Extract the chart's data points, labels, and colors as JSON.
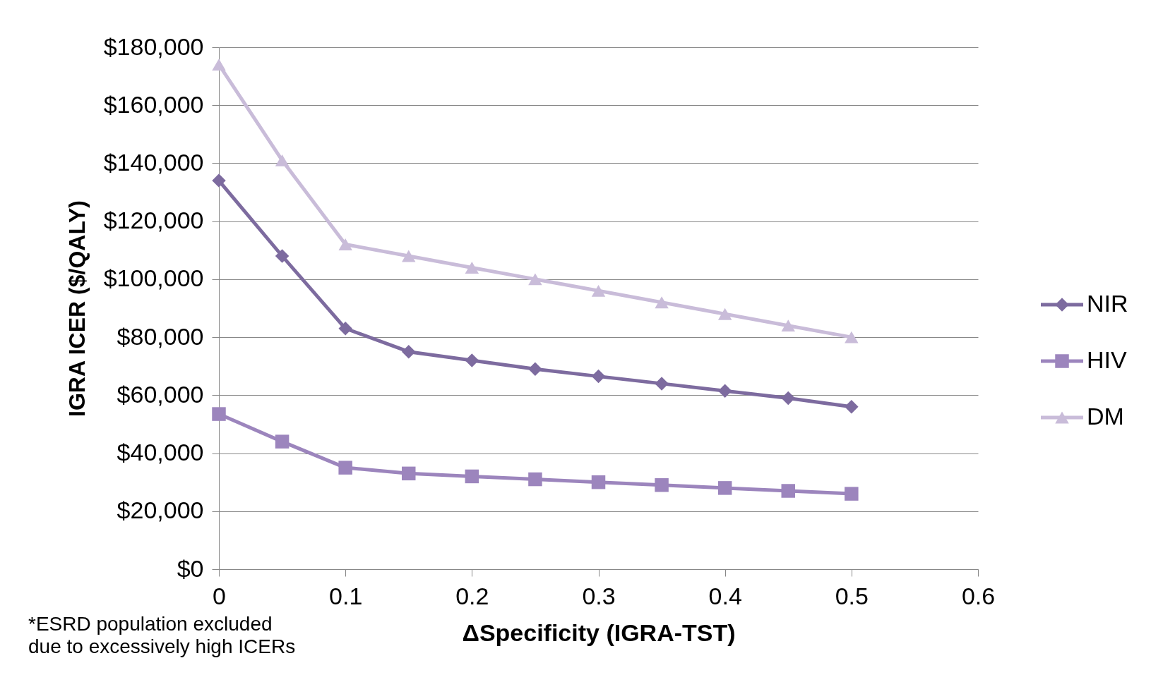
{
  "chart_data": {
    "type": "line",
    "xlabel": "ΔSpecificity (IGRA-TST)",
    "ylabel": "IGRA ICER ($/QALY)",
    "x": [
      0,
      0.05,
      0.1,
      0.15,
      0.2,
      0.25,
      0.3,
      0.35,
      0.4,
      0.45,
      0.5
    ],
    "series": [
      {
        "name": "NIR",
        "color": "#7d6b9f",
        "marker": "diamond",
        "values": [
          134000,
          108000,
          83000,
          75000,
          72000,
          69000,
          66500,
          64000,
          61500,
          59000,
          56000
        ]
      },
      {
        "name": "HIV",
        "color": "#9c85bd",
        "marker": "square",
        "values": [
          53500,
          44000,
          35000,
          33000,
          32000,
          31000,
          30000,
          29000,
          28000,
          27000,
          26000
        ]
      },
      {
        "name": "DM",
        "color": "#c9bcd9",
        "marker": "triangle",
        "values": [
          174000,
          141000,
          112000,
          108000,
          104000,
          100000,
          96000,
          92000,
          88000,
          84000,
          80000
        ]
      }
    ],
    "xlim": [
      0,
      0.6
    ],
    "xticks": [
      0,
      0.1,
      0.2,
      0.3,
      0.4,
      0.5,
      0.6
    ],
    "ylim": [
      0,
      180000
    ],
    "yticks": [
      {
        "value": 0,
        "label": "$0"
      },
      {
        "value": 20000,
        "label": "$20,000"
      },
      {
        "value": 40000,
        "label": "$40,000"
      },
      {
        "value": 60000,
        "label": "$60,000"
      },
      {
        "value": 80000,
        "label": "$80,000"
      },
      {
        "value": 100000,
        "label": "$100,000"
      },
      {
        "value": 120000,
        "label": "$120,000"
      },
      {
        "value": 140000,
        "label": "$140,000"
      },
      {
        "value": 160000,
        "label": "$160,000"
      },
      {
        "value": 180000,
        "label": "$180,000"
      }
    ],
    "grid": "y",
    "legend": "right",
    "line_style": "solid",
    "annotations": [
      "*ESRD population excluded\ndue to excessively high ICERs"
    ]
  }
}
